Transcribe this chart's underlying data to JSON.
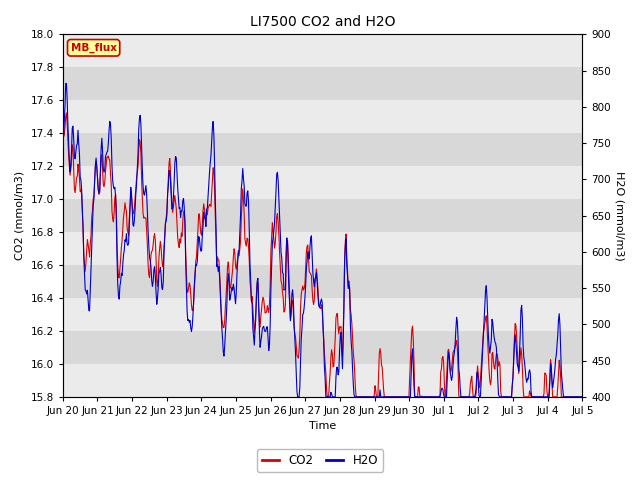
{
  "title": "LI7500 CO2 and H2O",
  "xlabel": "Time",
  "ylabel_left": "CO2 (mmol/m3)",
  "ylabel_right": "H2O (mmol/m3)",
  "co2_ylim": [
    15.8,
    18.0
  ],
  "h2o_ylim": [
    400,
    900
  ],
  "co2_color": "#dd0000",
  "h2o_color": "#0000cc",
  "background_color": "#ffffff",
  "plot_bg_color": "#d8d8d8",
  "stripe_color": "#ebebeb",
  "annotation_text": "MB_flux",
  "annotation_color": "#cc0000",
  "annotation_bg": "#ffff99",
  "annotation_edge": "#cc0000",
  "tick_labels": [
    "Jun 20",
    "Jun 21",
    "Jun 22",
    "Jun 23",
    "Jun 24",
    "Jun 25",
    "Jun 26",
    "Jun 27",
    "Jun 28",
    "Jun 29",
    "Jun 30",
    "Jul 1",
    "Jul 2",
    "Jul 3",
    "Jul 4",
    "Jul 5"
  ],
  "y_ticks_co2": [
    15.8,
    16.0,
    16.2,
    16.4,
    16.6,
    16.8,
    17.0,
    17.2,
    17.4,
    17.6,
    17.8,
    18.0
  ],
  "y_ticks_h2o": [
    400,
    450,
    500,
    550,
    600,
    650,
    700,
    750,
    800,
    850,
    900
  ],
  "n_points": 720,
  "title_fontsize": 10,
  "axis_label_fontsize": 8,
  "tick_fontsize": 7.5
}
